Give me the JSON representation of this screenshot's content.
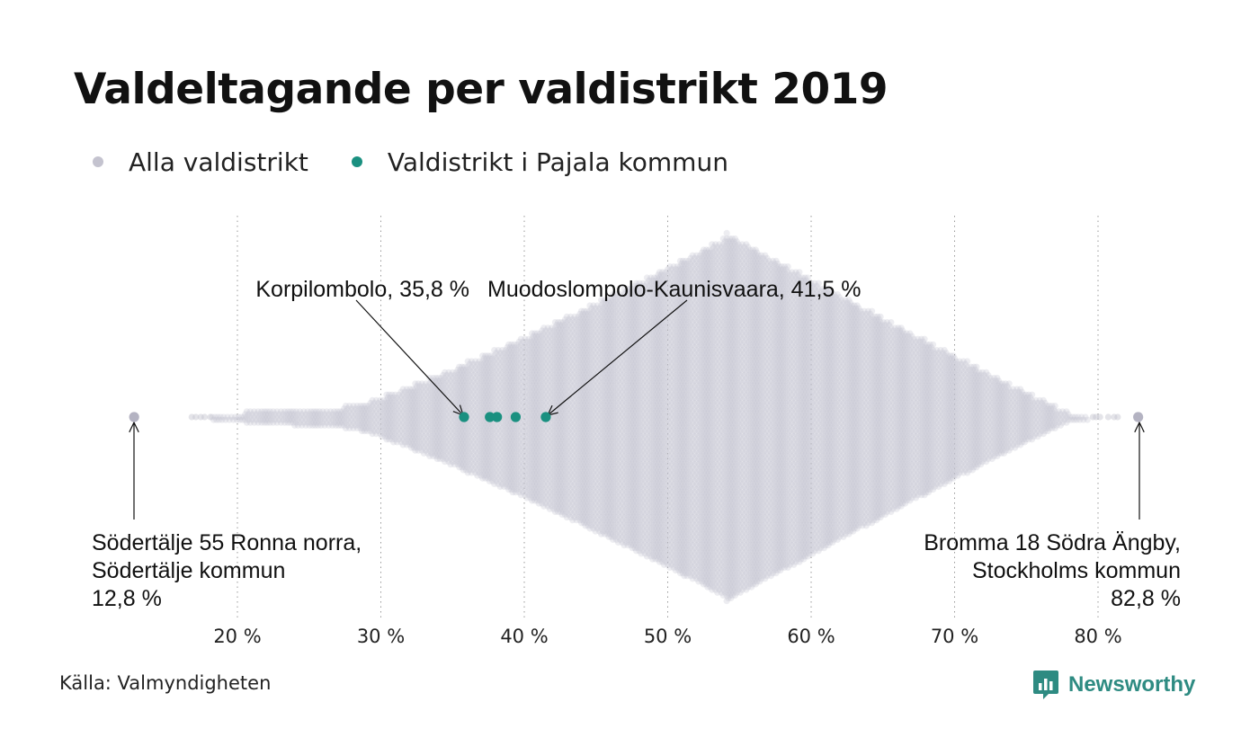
{
  "title": "Valdeltagande per valdistrikt 2019",
  "legend": [
    {
      "label": "Alla valdistrikt",
      "color": "#c4c3cf"
    },
    {
      "label": "Valdistrikt i Pajala kommun",
      "color": "#1a9080"
    }
  ],
  "source": "Källa: Valmyndigheten",
  "brand": {
    "name": "Newsworthy",
    "icon": "newsworthy-logo-icon",
    "color": "#2e8b82"
  },
  "chart_data": {
    "type": "beeswarm",
    "title": "Valdeltagande per valdistrikt 2019",
    "xlabel": "",
    "ylabel": "",
    "x_unit": "%",
    "xlim": [
      13,
      83
    ],
    "xticks": [
      20,
      30,
      40,
      50,
      60,
      70,
      80
    ],
    "xtick_labels": [
      "20 %",
      "30 %",
      "40 %",
      "50 %",
      "60 %",
      "70 %",
      "80 %"
    ],
    "grid": "vertical dotted",
    "legend_position": "top-left",
    "series": [
      {
        "name": "Alla valdistrikt",
        "color": "#c4c3cf",
        "min": 12.8,
        "max": 82.8,
        "peak": 54
      },
      {
        "name": "Valdistrikt i Pajala kommun",
        "color": "#1a9080",
        "values": [
          35.8,
          37.6,
          38.1,
          39.4,
          41.5
        ]
      }
    ],
    "annotations": [
      {
        "lines": [
          "Korpilombolo, 35,8 %"
        ],
        "x": 35.8
      },
      {
        "lines": [
          "Muodoslompolo-Kaunisvaara, 41,5 %"
        ],
        "x": 41.5
      },
      {
        "lines": [
          "Södertälje 55 Ronna norra,",
          "Södertälje kommun",
          "12,8 %"
        ],
        "x": 12.8
      },
      {
        "lines": [
          "Bromma 18 Södra Ängby,",
          "Stockholms kommun",
          "82,8 %"
        ],
        "x": 82.8
      }
    ]
  }
}
